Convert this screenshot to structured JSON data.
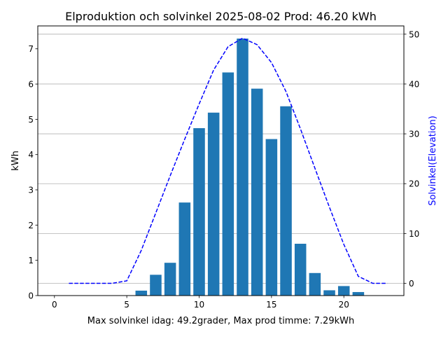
{
  "chart_data": {
    "type": "bar",
    "title": "Elproduktion och solvinkel 2025-08-02 Prod: 46.20 kWh",
    "xlabel": "Max solvinkel idag: 49.2grader, Max prod timme: 7.29kWh",
    "ylabel": "kWh",
    "y2label": "Solvinkel(Elevation)",
    "xlim": [
      -1.15,
      24.15
    ],
    "ylim": [
      0,
      7.65
    ],
    "y2lim": [
      -2.46,
      51.66
    ],
    "x_ticks": [
      0,
      5,
      10,
      15,
      20
    ],
    "y_ticks": [
      0,
      1,
      2,
      3,
      4,
      5,
      6,
      7
    ],
    "y2_ticks": [
      0,
      10,
      20,
      30,
      40,
      50
    ],
    "grid": "horizontal, secondary axis",
    "bar_color": "#1f77b4",
    "line_color": "#0000ff",
    "series": [
      {
        "kind": "bar",
        "axis": "left",
        "x": [
          6,
          7,
          8,
          9,
          10,
          11,
          12,
          13,
          14,
          15,
          16,
          17,
          18,
          19,
          20,
          21
        ],
        "values": [
          0.14,
          0.59,
          0.93,
          2.64,
          4.75,
          5.19,
          6.33,
          7.29,
          5.87,
          4.44,
          5.37,
          1.47,
          0.64,
          0.15,
          0.27,
          0.1
        ]
      },
      {
        "kind": "line",
        "axis": "right",
        "style": "dashed",
        "x": [
          1,
          2,
          3,
          4,
          5,
          6,
          7,
          8,
          9,
          10,
          11,
          12,
          13,
          14,
          15,
          16,
          17,
          18,
          19,
          20,
          21,
          22,
          23
        ],
        "values": [
          0,
          0,
          0,
          0,
          0.5,
          6.6,
          14.1,
          21.6,
          28.9,
          36.0,
          42.8,
          47.5,
          49.2,
          47.9,
          44.3,
          38.5,
          31.0,
          23.1,
          15.3,
          7.8,
          1.4,
          0,
          0
        ]
      }
    ]
  }
}
